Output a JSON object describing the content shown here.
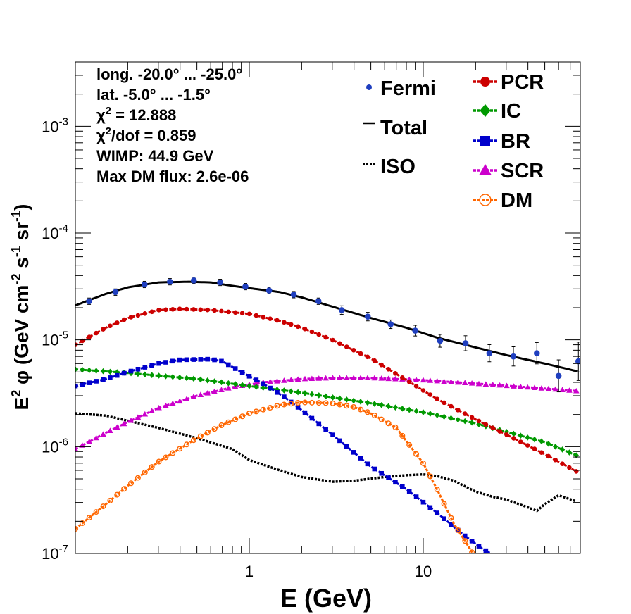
{
  "chart_data": {
    "type": "scatter",
    "xlabel": "E (GeV)",
    "ylabel_parts": [
      "E",
      "2",
      " φ (GeV cm",
      "-2",
      " s",
      "-1",
      " sr",
      "-1",
      ")"
    ],
    "x_scale": "log",
    "y_scale": "log",
    "xlim": [
      0.1,
      80
    ],
    "ylim": [
      1e-07,
      0.004
    ],
    "x_ticks": [
      {
        "value": 1,
        "label": "1"
      },
      {
        "value": 10,
        "label": "10"
      }
    ],
    "y_ticks": [
      {
        "value": 1e-07,
        "base": "10",
        "exp": "-7"
      },
      {
        "value": 1e-06,
        "base": "10",
        "exp": "-6"
      },
      {
        "value": 1e-05,
        "base": "10",
        "exp": "-5"
      },
      {
        "value": 0.0001,
        "base": "10",
        "exp": "-4"
      },
      {
        "value": 0.001,
        "base": "10",
        "exp": "-3"
      }
    ],
    "info_lines": [
      [
        {
          "t": "long. -20.0° ... -25.0°"
        }
      ],
      [
        {
          "t": "lat. -5.0° ... -1.5°"
        }
      ],
      [
        {
          "t": "χ"
        },
        {
          "t": "2",
          "sup": true
        },
        {
          "t": " = 12.888"
        }
      ],
      [
        {
          "t": "χ"
        },
        {
          "t": "2",
          "sup": true
        },
        {
          "t": "/dof = 0.859"
        }
      ],
      [
        {
          "t": "WIMP: 44.9 GeV"
        }
      ],
      [
        {
          "t": "Max DM flux: 2.6e-06"
        }
      ]
    ],
    "legend_left": [
      {
        "name": "Fermi",
        "marker": "dot",
        "color": "#1f3fbf"
      },
      {
        "name": "Total",
        "marker": "line",
        "color": "#000000"
      },
      {
        "name": "ISO",
        "marker": "dots",
        "color": "#000000"
      }
    ],
    "legend_right": [
      {
        "name": "PCR",
        "marker": "circle",
        "color": "#cc0000"
      },
      {
        "name": "IC",
        "marker": "diamond",
        "color": "#009900"
      },
      {
        "name": "BR",
        "marker": "square",
        "color": "#0000cc"
      },
      {
        "name": "SCR",
        "marker": "triangle",
        "color": "#cc00cc"
      },
      {
        "name": "DM",
        "marker": "opencircle",
        "color": "#ff6600"
      }
    ],
    "fermi": {
      "color": "#1f3fbf",
      "x": [
        0.12,
        0.17,
        0.25,
        0.35,
        0.48,
        0.68,
        0.95,
        1.3,
        1.8,
        2.5,
        3.4,
        4.8,
        6.5,
        9.0,
        12.5,
        17.5,
        24,
        33,
        45,
        60,
        78
      ],
      "y": [
        2.3e-05,
        2.8e-05,
        3.3e-05,
        3.5e-05,
        3.6e-05,
        3.45e-05,
        3.15e-05,
        2.9e-05,
        2.65e-05,
        2.3e-05,
        1.9e-05,
        1.65e-05,
        1.4e-05,
        1.22e-05,
        9.8e-06,
        9.3e-06,
        7.5e-06,
        7e-06,
        7.5e-06,
        4.6e-06,
        6.3e-06
      ],
      "err": [
        0.03,
        0.03,
        0.03,
        0.03,
        0.03,
        0.03,
        0.03,
        0.03,
        0.03,
        0.03,
        0.04,
        0.04,
        0.04,
        0.05,
        0.06,
        0.07,
        0.08,
        0.09,
        0.1,
        0.15,
        0.18
      ]
    },
    "series": [
      {
        "name": "Total",
        "color": "#000000",
        "style": "solid",
        "x": [
          0.1,
          0.15,
          0.2,
          0.3,
          0.45,
          0.6,
          0.8,
          1.0,
          1.5,
          2,
          3,
          5,
          8,
          12,
          20,
          30,
          50,
          80
        ],
        "y": [
          2.1e-05,
          2.7e-05,
          3.1e-05,
          3.45e-05,
          3.5e-05,
          3.45e-05,
          3.2e-05,
          3.05e-05,
          2.8e-05,
          2.5e-05,
          2.05e-05,
          1.6e-05,
          1.3e-05,
          1.05e-05,
          8.5e-06,
          7.2e-06,
          6e-06,
          5e-06
        ]
      },
      {
        "name": "PCR",
        "color": "#cc0000",
        "style": "markers",
        "marker": "circle",
        "x": [
          0.1,
          0.15,
          0.2,
          0.3,
          0.4,
          0.6,
          1.0,
          1.5,
          2,
          3,
          5,
          8,
          12,
          20,
          30,
          50,
          80
        ],
        "y": [
          9e-06,
          1.3e-05,
          1.6e-05,
          1.9e-05,
          1.95e-05,
          1.9e-05,
          1.75e-05,
          1.5e-05,
          1.3e-05,
          1e-05,
          6.7e-06,
          4.2e-06,
          2.8e-06,
          1.8e-06,
          1.3e-06,
          8.5e-07,
          5.6e-07
        ]
      },
      {
        "name": "IC",
        "color": "#009900",
        "style": "markers",
        "marker": "diamond",
        "x": [
          0.1,
          0.2,
          0.5,
          1,
          2,
          5,
          10,
          20,
          50,
          80
        ],
        "y": [
          5.3e-06,
          4.9e-06,
          4.3e-06,
          3.7e-06,
          3.2e-06,
          2.55e-06,
          2.1e-06,
          1.65e-06,
          1.1e-06,
          8e-07
        ]
      },
      {
        "name": "BR",
        "color": "#0000cc",
        "style": "markers",
        "marker": "square",
        "x": [
          0.1,
          0.15,
          0.2,
          0.3,
          0.4,
          0.6,
          0.7,
          0.9,
          1.2,
          1.6,
          2,
          3,
          5,
          8,
          12,
          17,
          22,
          25
        ],
        "y": [
          3.7e-06,
          4.3e-06,
          5e-06,
          6e-06,
          6.5e-06,
          6.6e-06,
          6.3e-06,
          5e-06,
          3.9e-06,
          2.9e-06,
          2.2e-06,
          1.3e-06,
          6.5e-07,
          4e-07,
          2.4e-07,
          1.5e-07,
          1.1e-07,
          9.8e-08
        ]
      },
      {
        "name": "SCR",
        "color": "#cc00cc",
        "style": "markers",
        "marker": "triangle",
        "x": [
          0.1,
          0.15,
          0.2,
          0.3,
          0.5,
          0.8,
          1.2,
          2,
          3,
          5,
          10,
          20,
          40,
          80
        ],
        "y": [
          9.5e-07,
          1.35e-06,
          1.7e-06,
          2.3e-06,
          3e-06,
          3.6e-06,
          4e-06,
          4.3e-06,
          4.4e-06,
          4.4e-06,
          4.2e-06,
          3.9e-06,
          3.6e-06,
          3.3e-06
        ]
      },
      {
        "name": "DM",
        "color": "#ff6600",
        "style": "markers",
        "marker": "opencircle",
        "x": [
          0.1,
          0.15,
          0.2,
          0.3,
          0.5,
          0.7,
          1.0,
          1.5,
          2,
          3,
          4,
          5,
          7,
          10,
          12,
          15,
          18,
          20
        ],
        "y": [
          1.7e-07,
          2.9e-07,
          4.3e-07,
          7.2e-07,
          1.2e-06,
          1.6e-06,
          2.05e-06,
          2.45e-06,
          2.6e-06,
          2.55e-06,
          2.35e-06,
          2.05e-06,
          1.5e-06,
          7e-07,
          4e-07,
          1.9e-07,
          1.2e-07,
          9e-08
        ]
      },
      {
        "name": "ISO",
        "color": "#000000",
        "style": "dotted",
        "x": [
          0.1,
          0.15,
          0.2,
          0.3,
          0.5,
          0.8,
          1.0,
          1.5,
          2,
          3,
          4,
          6,
          8,
          10,
          12,
          15,
          20,
          25,
          30,
          40,
          45,
          50,
          60,
          75
        ],
        "y": [
          2.05e-06,
          1.95e-06,
          1.75e-06,
          1.5e-06,
          1.2e-06,
          9.5e-07,
          7.5e-07,
          6e-07,
          5.2e-07,
          4.7e-07,
          4.8e-07,
          5.2e-07,
          5.4e-07,
          5.5e-07,
          5.3e-07,
          4.8e-07,
          3.8e-07,
          3.4e-07,
          3.2e-07,
          2.7e-07,
          2.5e-07,
          2.9e-07,
          3.5e-07,
          3.1e-07
        ]
      }
    ]
  }
}
